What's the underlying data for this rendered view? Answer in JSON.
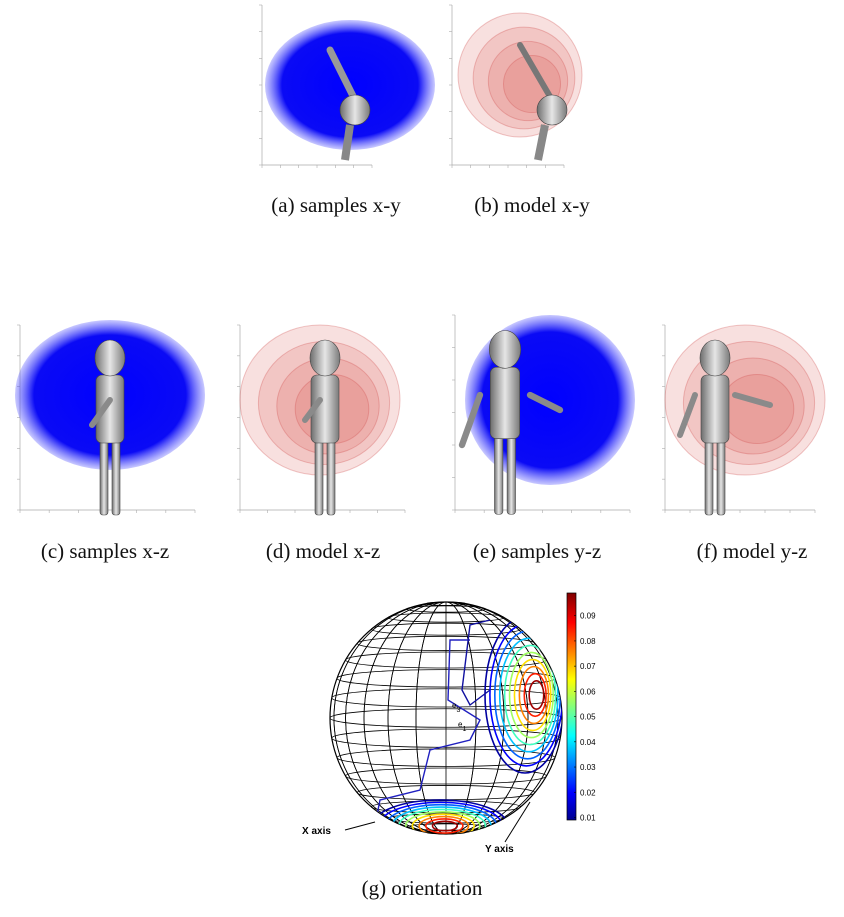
{
  "figure": {
    "panels": [
      {
        "caption": "(a) samples x-y"
      },
      {
        "caption": "(b) model x-y"
      },
      {
        "caption": "(c) samples x-z"
      },
      {
        "caption": "(d) model x-z"
      },
      {
        "caption": "(e) samples y-z"
      },
      {
        "caption": "(f) model y-z"
      },
      {
        "caption": "(g) orientation"
      }
    ],
    "orientation": {
      "annotations": [
        "X axis",
        "Y axis"
      ],
      "frame_labels": [
        {
          "base": "e",
          "sub": "3"
        },
        {
          "base": "e",
          "sub": "1"
        }
      ],
      "colorbar": {
        "lim": [
          0.009,
          0.099
        ],
        "ticks": [
          0.01,
          0.02,
          0.03,
          0.04,
          0.05,
          0.06,
          0.07,
          0.08,
          0.09
        ]
      }
    }
  }
}
